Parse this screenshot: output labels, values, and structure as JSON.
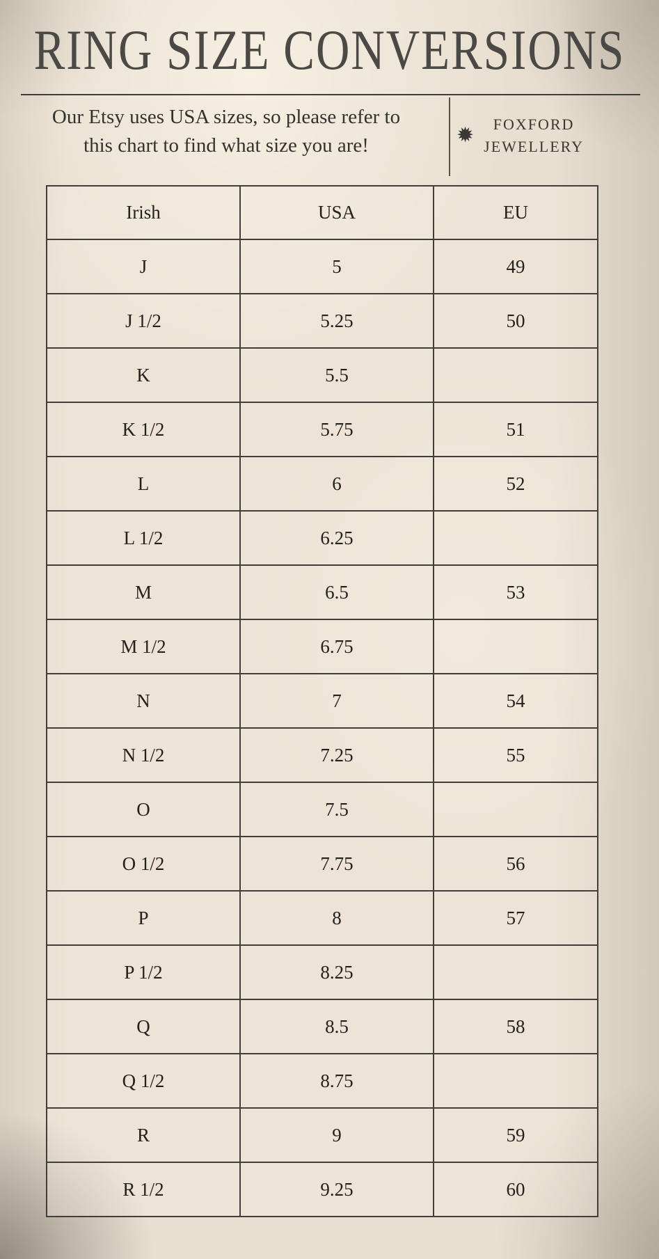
{
  "title": "RING SIZE CONVERSIONS",
  "intro": {
    "line1": "Our Etsy uses USA sizes, so please refer to",
    "line2": "this chart to find what size you are!"
  },
  "brand": {
    "name": "FOXFORD JEWELLERY",
    "line1": "FOXFORD",
    "line2": "JEWELLERY",
    "icon": "starburst-icon",
    "icon_glyph": "✹"
  },
  "colors": {
    "background": "#e8dfd0",
    "table_line": "#403e3a",
    "title_ink": "#4b4945",
    "text_ink": "#23211e"
  },
  "chart_data": {
    "type": "table",
    "title": "RING SIZE CONVERSIONS",
    "columns": [
      "Irish",
      "USA",
      "EU"
    ],
    "rows": [
      [
        "J",
        "5",
        "49"
      ],
      [
        "J 1/2",
        "5.25",
        "50"
      ],
      [
        "K",
        "5.5",
        ""
      ],
      [
        "K 1/2",
        "5.75",
        "51"
      ],
      [
        "L",
        "6",
        "52"
      ],
      [
        "L 1/2",
        "6.25",
        ""
      ],
      [
        "M",
        "6.5",
        "53"
      ],
      [
        "M 1/2",
        "6.75",
        ""
      ],
      [
        "N",
        "7",
        "54"
      ],
      [
        "N 1/2",
        "7.25",
        "55"
      ],
      [
        "O",
        "7.5",
        ""
      ],
      [
        "O 1/2",
        "7.75",
        "56"
      ],
      [
        "P",
        "8",
        "57"
      ],
      [
        "P 1/2",
        "8.25",
        ""
      ],
      [
        "Q",
        "8.5",
        "58"
      ],
      [
        "Q 1/2",
        "8.75",
        ""
      ],
      [
        "R",
        "9",
        "59"
      ],
      [
        "R 1/2",
        "9.25",
        "60"
      ]
    ]
  }
}
